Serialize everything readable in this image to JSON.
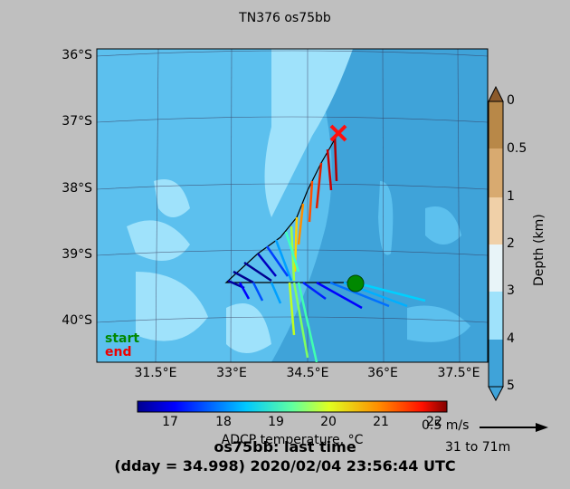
{
  "title": "TN376 os75bb",
  "map": {
    "lat_labels": [
      "36°S",
      "37°S",
      "38°S",
      "39°S",
      "40°S"
    ],
    "lon_labels": [
      "31.5°E",
      "33°E",
      "34.5°E",
      "36°E",
      "37.5°E"
    ],
    "start_label": "start",
    "end_label": "end",
    "colors": {
      "ocean_deep": "#3fa3d9",
      "ocean_mid": "#5cc0ee",
      "ocean_shallow": "#9fe2fb",
      "end_marker": "#ff1010",
      "start_marker": "#008800"
    }
  },
  "depth_colorbar": {
    "label": "Depth (km)",
    "ticks": [
      "0",
      "0.5",
      "1",
      "2",
      "3",
      "4",
      "5"
    ]
  },
  "temp_colorbar": {
    "label": "ADCP temperature, °C",
    "ticks": [
      "17",
      "18",
      "19",
      "20",
      "21",
      "22"
    ]
  },
  "scale": {
    "speed_label": "0.5 m/s",
    "depth_range": "31 to 71m"
  },
  "footer": {
    "line1": "os75bb: last time",
    "line2": "(dday = 34.998) 2020/02/04 23:56:44 UTC"
  },
  "chart_data": {
    "type": "map",
    "track": [
      {
        "lon": 35.2,
        "lat": -37.2,
        "temp": 21.8
      },
      {
        "lon": 34.9,
        "lat": -37.9,
        "temp": 21.3
      },
      {
        "lon": 34.6,
        "lat": -38.4,
        "temp": 20.6
      },
      {
        "lon": 34.3,
        "lat": -38.8,
        "temp": 19.6
      },
      {
        "lon": 33.8,
        "lat": -39.1,
        "temp": 18.4
      },
      {
        "lon": 33.3,
        "lat": -39.4,
        "temp": 17.2
      },
      {
        "lon": 34.0,
        "lat": -39.45,
        "temp": 17.8
      },
      {
        "lon": 34.5,
        "lat": -39.45,
        "temp": 19.8
      },
      {
        "lon": 35.2,
        "lat": -39.45,
        "temp": 18.2
      },
      {
        "lon": 35.5,
        "lat": -39.45,
        "temp": 17.4
      }
    ],
    "end_position": {
      "lon": 35.2,
      "lat": -37.2
    },
    "start_position": {
      "lon": 35.5,
      "lat": -39.45
    }
  }
}
